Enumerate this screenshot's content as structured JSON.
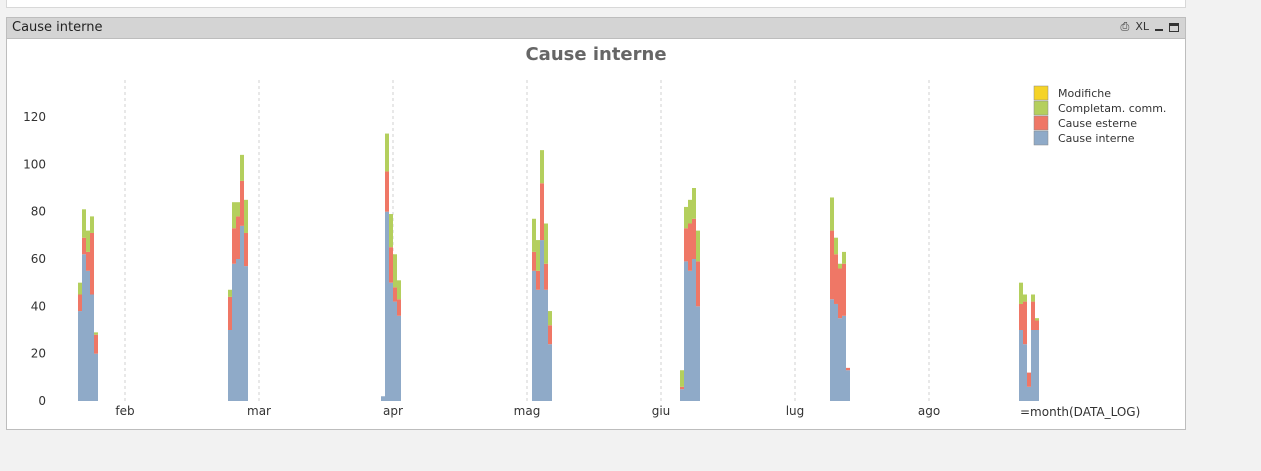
{
  "object": {
    "caption": "Cause interne",
    "icons": [
      "print-icon",
      "xl-icon",
      "minimize-icon",
      "maximize-icon"
    ],
    "xl_label": "XL"
  },
  "chart_data": {
    "type": "bar",
    "stacked": true,
    "title": "Cause interne",
    "xlabel": "=month(DATA_LOG)",
    "ylabel": "",
    "ylim": [
      0,
      135
    ],
    "yticks": [
      0,
      20,
      40,
      60,
      80,
      100,
      120
    ],
    "x_ticks": [
      "feb",
      "mar",
      "apr",
      "mag",
      "giu",
      "lug",
      "ago"
    ],
    "grid": "vertical-dashed",
    "legend_position": "top-right",
    "series": [
      {
        "name": "Modifiche",
        "color": "#f5d327"
      },
      {
        "name": "Completam. comm.",
        "color": "#b4cf5d"
      },
      {
        "name": "Cause esterne",
        "color": "#ef7766"
      },
      {
        "name": "Cause interne",
        "color": "#8faac8"
      }
    ],
    "legend_order": [
      "Modifiche",
      "Completam. comm.",
      "Cause esterne",
      "Cause interne"
    ],
    "groups": [
      {
        "month_pos": 0.26,
        "bars": [
          {
            "interne": 38,
            "esterne": 7,
            "completam": 5
          },
          {
            "interne": 62,
            "esterne": 7,
            "completam": 12
          },
          {
            "interne": 55,
            "esterne": 8,
            "completam": 9
          },
          {
            "interne": 45,
            "esterne": 26,
            "completam": 7
          },
          {
            "interne": 20,
            "esterne": 8,
            "completam": 1
          }
        ]
      },
      {
        "month_pos": 1.38,
        "bars": [
          {
            "interne": 30,
            "esterne": 14,
            "completam": 3
          },
          {
            "interne": 58,
            "esterne": 15,
            "completam": 11
          },
          {
            "interne": 60,
            "esterne": 18,
            "completam": 6
          },
          {
            "interne": 74,
            "esterne": 19,
            "completam": 11
          },
          {
            "interne": 57,
            "esterne": 14,
            "completam": 14
          }
        ]
      },
      {
        "month_pos": 2.52,
        "bars": [
          {
            "interne": 2,
            "esterne": 0,
            "completam": 0
          },
          {
            "interne": 80,
            "esterne": 17,
            "completam": 16
          },
          {
            "interne": 50,
            "esterne": 15,
            "completam": 14
          },
          {
            "interne": 42,
            "esterne": 6,
            "completam": 14
          },
          {
            "interne": 36,
            "esterne": 7,
            "completam": 8
          }
        ]
      },
      {
        "month_pos": 3.65,
        "bars": [
          {
            "interne": 55,
            "esterne": 8,
            "completam": 14
          },
          {
            "interne": 47,
            "esterne": 8,
            "completam": 13
          },
          {
            "interne": 68,
            "esterne": 24,
            "completam": 14
          },
          {
            "interne": 47,
            "esterne": 11,
            "completam": 17
          },
          {
            "interne": 24,
            "esterne": 8,
            "completam": 6
          }
        ]
      },
      {
        "month_pos": 4.75,
        "bars": [
          {
            "interne": 5,
            "esterne": 1,
            "completam": 7
          },
          {
            "interne": 59,
            "esterne": 14,
            "completam": 9
          },
          {
            "interne": 55,
            "esterne": 20,
            "completam": 10
          },
          {
            "interne": 60,
            "esterne": 17,
            "completam": 13
          },
          {
            "interne": 40,
            "esterne": 19,
            "completam": 13
          }
        ]
      },
      {
        "month_pos": 5.87,
        "bars": [
          {
            "interne": 43,
            "esterne": 29,
            "completam": 14
          },
          {
            "interne": 41,
            "esterne": 21,
            "completam": 7
          },
          {
            "interne": 35,
            "esterne": 21,
            "completam": 2
          },
          {
            "interne": 36,
            "esterne": 22,
            "completam": 5
          },
          {
            "interne": 13,
            "esterne": 1,
            "completam": 0
          }
        ]
      },
      {
        "month_pos": 7.28,
        "bars": [
          {
            "interne": 30,
            "esterne": 11,
            "completam": 9
          },
          {
            "interne": 24,
            "esterne": 18,
            "completam": 3
          },
          {
            "interne": 6,
            "esterne": 6,
            "completam": 0
          },
          {
            "interne": 30,
            "esterne": 12,
            "completam": 3
          },
          {
            "interne": 30,
            "esterne": 4,
            "completam": 1
          }
        ]
      }
    ]
  }
}
